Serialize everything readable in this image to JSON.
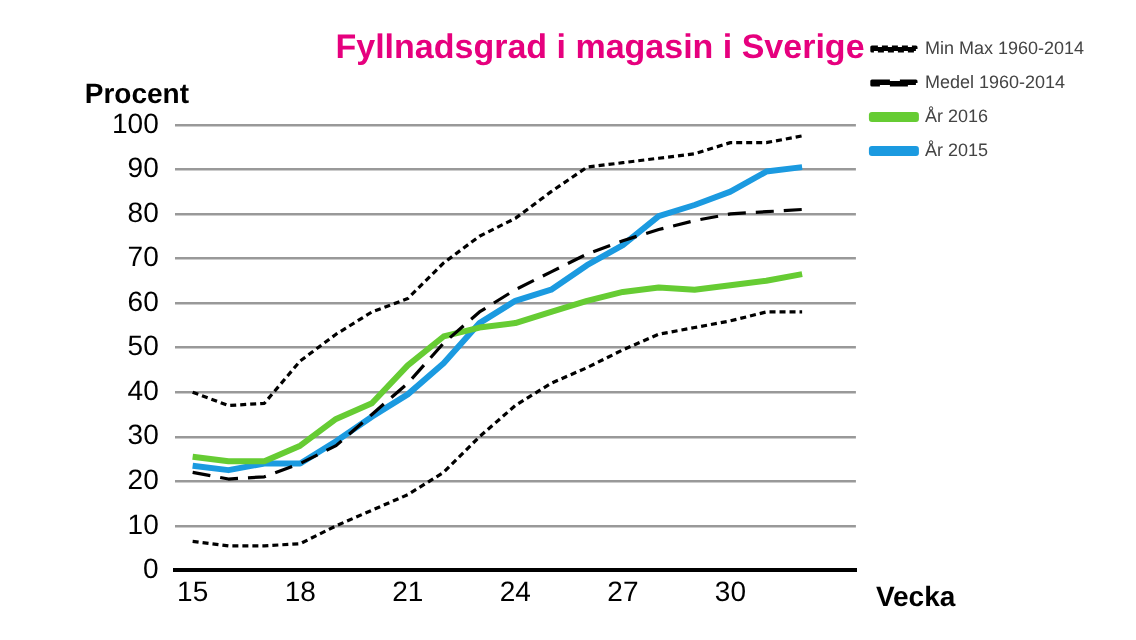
{
  "chart_data": {
    "type": "line",
    "title": "Fyllnadsgrad i magasin i Sverige",
    "ylabel": "Procent",
    "xlabel": "Vecka",
    "x": [
      15,
      16,
      17,
      18,
      19,
      20,
      21,
      22,
      23,
      24,
      25,
      26,
      27,
      28,
      29,
      30,
      31,
      32
    ],
    "series": [
      {
        "name": "Min Max 1960-2014",
        "color": "#000000",
        "line_style": "dotted",
        "values": [
          40,
          37,
          37.5,
          47,
          53,
          58,
          61,
          69,
          75,
          79,
          85,
          90.5,
          91.5,
          92.5,
          93.5,
          96,
          96,
          97.5
        ]
      },
      {
        "color": "#000000",
        "line_style": "dotted",
        "values": [
          6.5,
          5.5,
          5.5,
          6,
          10,
          13.5,
          17,
          22,
          30,
          37,
          42,
          45.5,
          49.5,
          53,
          54.5,
          56,
          58,
          58
        ]
      },
      {
        "name": "Medel 1960-2014",
        "color": "#000000",
        "line_style": "dashed",
        "values": [
          22,
          20.5,
          21,
          24,
          28,
          35,
          42,
          51,
          58,
          63,
          67,
          71,
          74,
          76.5,
          78.5,
          80,
          80.5,
          81
        ]
      },
      {
        "name": "År 2016",
        "color": "#66cc33",
        "line_style": "solid",
        "values": [
          25.5,
          24.5,
          24.5,
          28,
          34,
          37.5,
          46,
          52.5,
          54.5,
          55.5,
          58,
          60.5,
          62.5,
          63.5,
          63,
          64,
          65,
          66.5
        ]
      },
      {
        "name": "År 2015",
        "color": "#1b9ae0",
        "line_style": "solid",
        "values": [
          23.5,
          22.5,
          24,
          24,
          29,
          34.5,
          39.5,
          46.5,
          55.5,
          60.5,
          63,
          68.5,
          73,
          79.5,
          82,
          85,
          89.5,
          90.5
        ]
      }
    ],
    "xlim": [
      14.5,
      33.5
    ],
    "xticks": [
      15,
      18,
      21,
      24,
      27,
      30
    ],
    "ylim": [
      0,
      100
    ],
    "yticks": [
      0,
      10,
      20,
      30,
      40,
      50,
      60,
      70,
      80,
      90,
      100
    ],
    "grid": "y",
    "legend": "right",
    "marker": "none"
  }
}
